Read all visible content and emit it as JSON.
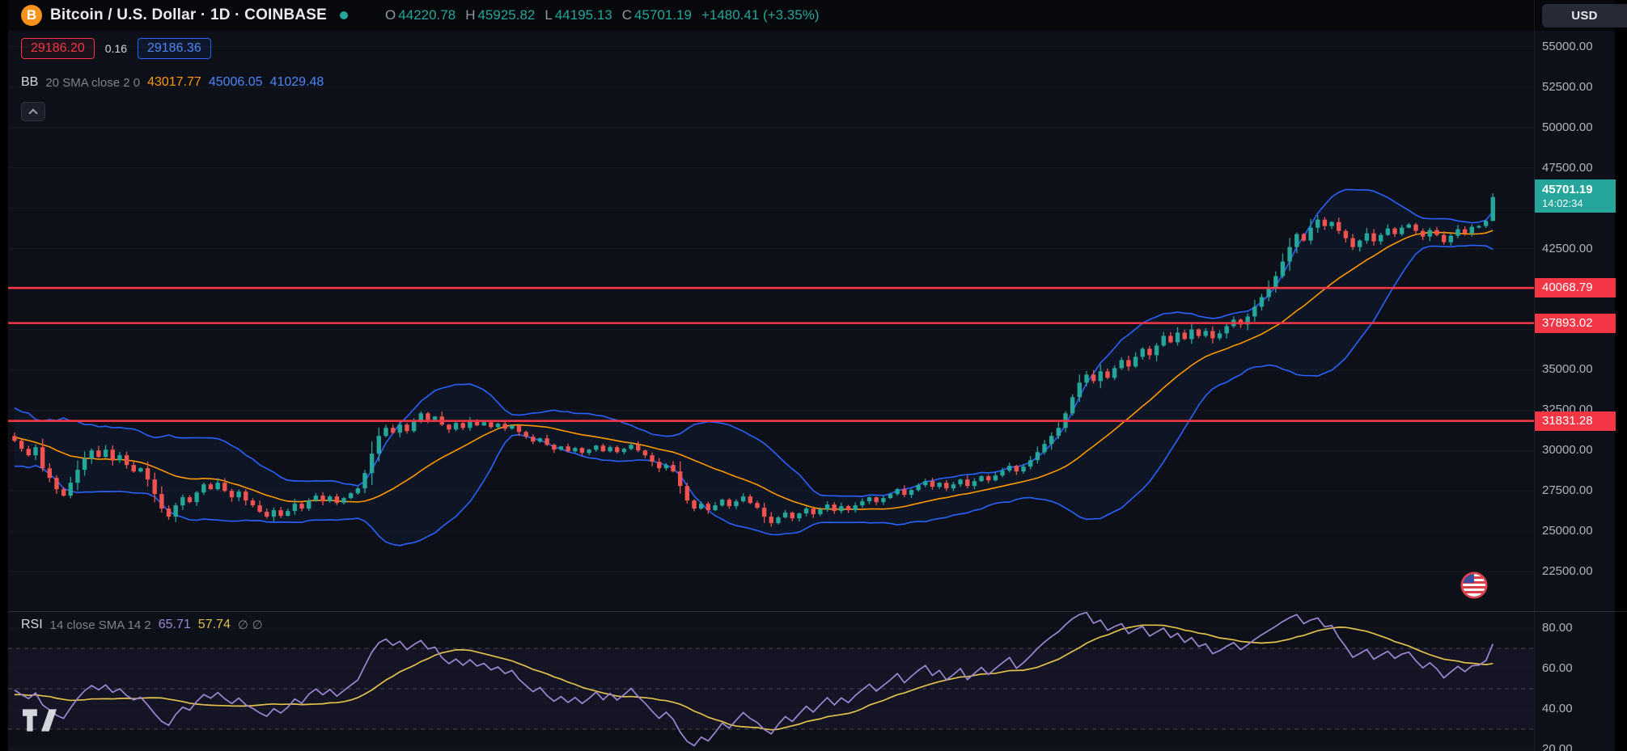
{
  "header": {
    "symbol_title": "Bitcoin / U.S. Dollar · 1D · COINBASE",
    "btc_glyph": "B",
    "ohlc": {
      "o_label": "O",
      "o_value": "44220.78",
      "h_label": "H",
      "h_value": "45925.82",
      "l_label": "L",
      "l_value": "44195.13",
      "c_label": "C",
      "c_value": "45701.19",
      "change": "+1480.41 (+3.35%)"
    },
    "currency_button": "USD"
  },
  "legend": {
    "red_badge": "29186.20",
    "size_value": "0.16",
    "blue_badge": "29186.36",
    "bb": {
      "name": "BB",
      "params": "20 SMA close 2 0",
      "basis_value": "43017.77",
      "upper_value": "45006.05",
      "lower_value": "41029.48"
    },
    "rsi": {
      "name": "RSI",
      "params": "14 close SMA 14 2",
      "value": "65.71",
      "ma_value": "57.74",
      "disabled_plots": "∅ ∅"
    }
  },
  "price_axis": {
    "ticks": [
      {
        "text": "55000.00",
        "price": 55000
      },
      {
        "text": "52500.00",
        "price": 52500
      },
      {
        "text": "50000.00",
        "price": 50000
      },
      {
        "text": "47500.00",
        "price": 47500
      },
      {
        "text": "42500.00",
        "price": 42500
      },
      {
        "text": "35000.00",
        "price": 35000
      },
      {
        "text": "32500.00",
        "price": 32500
      },
      {
        "text": "30000.00",
        "price": 30000
      },
      {
        "text": "27500.00",
        "price": 27500
      },
      {
        "text": "25000.00",
        "price": 25000
      },
      {
        "text": "22500.00",
        "price": 22500
      }
    ],
    "red_levels": [
      {
        "text": "40068.79",
        "price": 40068.79
      },
      {
        "text": "37893.02",
        "price": 37893.02
      },
      {
        "text": "31831.28",
        "price": 31831.28
      }
    ],
    "current": {
      "text": "45701.19",
      "countdown": "14:02:34",
      "price": 45701.19
    }
  },
  "rsi_axis": {
    "ticks": [
      {
        "text": "80.00",
        "value": 80
      },
      {
        "text": "60.00",
        "value": 60
      },
      {
        "text": "40.00",
        "value": 40
      },
      {
        "text": "20.00",
        "value": 20
      }
    ]
  },
  "colors": {
    "bg": "#0d1018",
    "header_bg": "#07080c",
    "up": "#26a69a",
    "down": "#ef5350",
    "line_red": "#f23645",
    "bb_band": "#2962ff",
    "bb_basis": "#ff9800",
    "bb_fill": "rgba(41,98,255,0.06)",
    "rsi_line": "#9b87d4",
    "rsi_ma": "#e2c04c",
    "rsi_band_fill": "rgba(126,87,194,0.07)",
    "rsi_dash": "rgba(134,140,154,0.45)",
    "axis_text": "#b0b4bf",
    "label_green_bg": "#26a69a",
    "badge_red": "#f23645",
    "badge_blue": "#2962ff",
    "accent_orange": "#f7931a"
  },
  "chart_data": {
    "type": "candlestick",
    "title": "Bitcoin / U.S. Dollar",
    "timeframe": "1D",
    "exchange": "COINBASE",
    "visible_price_range": [
      20000,
      57900
    ],
    "ohlc_last": {
      "open": 44220.78,
      "high": 45925.82,
      "low": 44195.13,
      "close": 45701.19,
      "change": 1480.41,
      "change_pct": 3.35
    },
    "grid_prices": [
      55000,
      52500,
      50000,
      47500,
      45000,
      42500,
      40000,
      37500,
      35000,
      32500,
      30000,
      27500,
      25000,
      22500
    ],
    "horizontal_lines": [
      {
        "price": 40068.79,
        "color": "#f23645"
      },
      {
        "price": 37893.02,
        "color": "#f23645"
      },
      {
        "price": 31831.28,
        "color": "#f23645"
      }
    ],
    "bollinger": {
      "length": 20,
      "source": "close",
      "stdev": 2,
      "offset": 0,
      "basis": 43017.77,
      "upper": 45006.05,
      "lower": 41029.48
    },
    "rsi": {
      "length": 14,
      "source": "close",
      "smoothing_type": "SMA",
      "smoothing_length": 14,
      "value": 65.71,
      "ma": 57.74,
      "bands": [
        70,
        50,
        30
      ],
      "scale_ticks": [
        80,
        60,
        40,
        20
      ]
    },
    "pre_closes": [
      32400,
      31600,
      32600,
      31800,
      30900,
      32000,
      30700,
      31500,
      30100,
      31100,
      29900,
      30800,
      29600,
      30400,
      29300,
      30100,
      29700,
      30600,
      30900
    ],
    "closes": [
      30600,
      30100,
      29700,
      30200,
      28900,
      28300,
      27600,
      27200,
      28000,
      28800,
      29500,
      30000,
      29600,
      30050,
      29400,
      29700,
      29100,
      28700,
      28900,
      28200,
      27300,
      26400,
      25900,
      26600,
      27100,
      26800,
      27400,
      27900,
      27600,
      28000,
      27500,
      27100,
      27450,
      26900,
      26600,
      26200,
      25900,
      26300,
      25950,
      26250,
      26700,
      26400,
      26900,
      27200,
      26850,
      27150,
      26750,
      27050,
      27350,
      27650,
      28600,
      29800,
      30900,
      31400,
      31100,
      31600,
      31200,
      31800,
      32300,
      31900,
      32100,
      31600,
      31300,
      31700,
      31400,
      31850,
      31550,
      31750,
      31450,
      31650,
      31350,
      31550,
      31150,
      30850,
      30550,
      30750,
      30350,
      30050,
      30250,
      29950,
      30150,
      29850,
      30050,
      30300,
      29950,
      30200,
      29900,
      30100,
      30350,
      30000,
      29700,
      29300,
      28900,
      29100,
      28700,
      27800,
      26900,
      26400,
      26700,
      26300,
      26600,
      26950,
      26550,
      26850,
      27150,
      26750,
      26450,
      25900,
      25500,
      25850,
      26150,
      25800,
      26100,
      26400,
      26050,
      26350,
      26650,
      26250,
      26550,
      26300,
      26600,
      26850,
      27100,
      26800,
      27050,
      27300,
      27600,
      27250,
      27550,
      27850,
      28100,
      27750,
      28000,
      27650,
      27900,
      28200,
      27800,
      28100,
      28400,
      28150,
      28450,
      28750,
      29050,
      28700,
      29000,
      29400,
      29900,
      30400,
      30900,
      31400,
      32300,
      33300,
      34200,
      34700,
      34300,
      34900,
      34500,
      35100,
      35600,
      35200,
      35800,
      36300,
      35900,
      36500,
      37100,
      36700,
      37300,
      36900,
      37500,
      37100,
      37400,
      36950,
      37250,
      37700,
      38100,
      37800,
      38300,
      38900,
      39500,
      40100,
      40800,
      41700,
      42600,
      43400,
      43000,
      43800,
      44300,
      43900,
      44150,
      43600,
      43150,
      42600,
      43000,
      43450,
      42950,
      43350,
      43750,
      43400,
      43800,
      44000,
      43600,
      43250,
      43650,
      43350,
      42900,
      43300,
      43700,
      43450,
      43850,
      43900,
      44220.78,
      45701.19
    ],
    "last_candle": {
      "o": 44220.78,
      "h": 45925.82,
      "l": 44195.13,
      "c": 45701.19
    }
  }
}
